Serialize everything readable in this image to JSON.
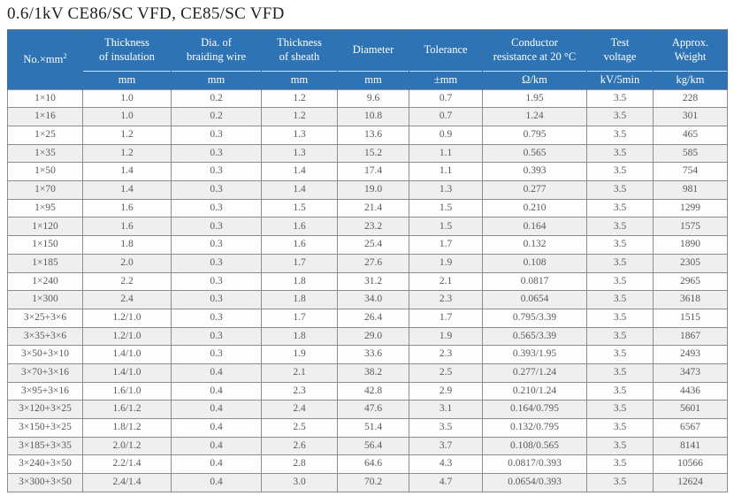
{
  "title": "0.6/1kV  CE86/SC VFD, CE85/SC VFD",
  "table": {
    "corner": {
      "base": "No.×mm",
      "sup": "2"
    },
    "columns": [
      {
        "lines": [
          "Thickness",
          "of insulation"
        ],
        "unit": "mm"
      },
      {
        "lines": [
          "Dia. of",
          "braiding wire"
        ],
        "unit": "mm"
      },
      {
        "lines": [
          "Thickness",
          "of sheath"
        ],
        "unit": "mm"
      },
      {
        "lines": [
          "Diameter"
        ],
        "unit": "mm"
      },
      {
        "lines": [
          "Tolerance"
        ],
        "unit": "±mm"
      },
      {
        "lines": [
          "Conductor",
          "resistance at 20 °C"
        ],
        "unit": "Ω/km"
      },
      {
        "lines": [
          "Test",
          "voltage"
        ],
        "unit": "kV/5min"
      },
      {
        "lines": [
          "Approx.",
          "Weight"
        ],
        "unit": "kg/km"
      }
    ],
    "rows": [
      [
        "1×10",
        "1.0",
        "0.2",
        "1.2",
        "9.6",
        "0.7",
        "1.95",
        "3.5",
        "228"
      ],
      [
        "1×16",
        "1.0",
        "0.2",
        "1.2",
        "10.8",
        "0.7",
        "1.24",
        "3.5",
        "301"
      ],
      [
        "1×25",
        "1.2",
        "0.3",
        "1.3",
        "13.6",
        "0.9",
        "0.795",
        "3.5",
        "465"
      ],
      [
        "1×35",
        "1.2",
        "0.3",
        "1.3",
        "15.2",
        "1.1",
        "0.565",
        "3.5",
        "585"
      ],
      [
        "1×50",
        "1.4",
        "0.3",
        "1.4",
        "17.4",
        "1.1",
        "0.393",
        "3.5",
        "754"
      ],
      [
        "1×70",
        "1.4",
        "0.3",
        "1.4",
        "19.0",
        "1.3",
        "0.277",
        "3.5",
        "981"
      ],
      [
        "1×95",
        "1.6",
        "0.3",
        "1.5",
        "21.4",
        "1.5",
        "0.210",
        "3.5",
        "1299"
      ],
      [
        "1×120",
        "1.6",
        "0.3",
        "1.6",
        "23.2",
        "1.5",
        "0.164",
        "3.5",
        "1575"
      ],
      [
        "1×150",
        "1.8",
        "0.3",
        "1.6",
        "25.4",
        "1.7",
        "0.132",
        "3.5",
        "1890"
      ],
      [
        "1×185",
        "2.0",
        "0.3",
        "1.7",
        "27.6",
        "1.9",
        "0.108",
        "3.5",
        "2305"
      ],
      [
        "1×240",
        "2.2",
        "0.3",
        "1.8",
        "31.2",
        "2.1",
        "0.0817",
        "3.5",
        "2965"
      ],
      [
        "1×300",
        "2.4",
        "0.3",
        "1.8",
        "34.0",
        "2.3",
        "0.0654",
        "3.5",
        "3618"
      ],
      [
        "3×25+3×6",
        "1.2/1.0",
        "0.3",
        "1.7",
        "26.4",
        "1.7",
        "0.795/3.39",
        "3.5",
        "1515"
      ],
      [
        "3×35+3×6",
        "1.2/1.0",
        "0.3",
        "1.8",
        "29.0",
        "1.9",
        "0.565/3.39",
        "3.5",
        "1867"
      ],
      [
        "3×50+3×10",
        "1.4/1.0",
        "0.3",
        "1.9",
        "33.6",
        "2.3",
        "0.393/1.95",
        "3.5",
        "2493"
      ],
      [
        "3×70+3×16",
        "1.4/1.0",
        "0.4",
        "2.1",
        "38.2",
        "2.5",
        "0.277/1.24",
        "3.5",
        "3473"
      ],
      [
        "3×95+3×16",
        "1.6/1.0",
        "0.4",
        "2.3",
        "42.8",
        "2.9",
        "0.210/1.24",
        "3.5",
        "4436"
      ],
      [
        "3×120+3×25",
        "1.6/1.2",
        "0.4",
        "2.4",
        "47.6",
        "3.1",
        "0.164/0.795",
        "3.5",
        "5601"
      ],
      [
        "3×150+3×25",
        "1.8/1.2",
        "0.4",
        "2.5",
        "51.4",
        "3.5",
        "0.132/0.795",
        "3.5",
        "6567"
      ],
      [
        "3×185+3×35",
        "2.0/1.2",
        "0.4",
        "2.6",
        "56.4",
        "3.7",
        "0.108/0.565",
        "3.5",
        "8141"
      ],
      [
        "3×240+3×50",
        "2.2/1.4",
        "0.4",
        "2.8",
        "64.6",
        "4.3",
        "0.0817/0.393",
        "3.5",
        "10566"
      ],
      [
        "3×300+3×50",
        "2.4/1.4",
        "0.4",
        "3.0",
        "70.2",
        "4.7",
        "0.0654/0.393",
        "3.5",
        "12624"
      ]
    ]
  },
  "colors": {
    "header_bg": "#2E74B5",
    "header_text": "#FFFFFF",
    "row_alt_bg": "#EFEFEF",
    "grid_line": "#8C8C8C",
    "body_text": "#595959",
    "title_text": "#1F1F1F"
  }
}
